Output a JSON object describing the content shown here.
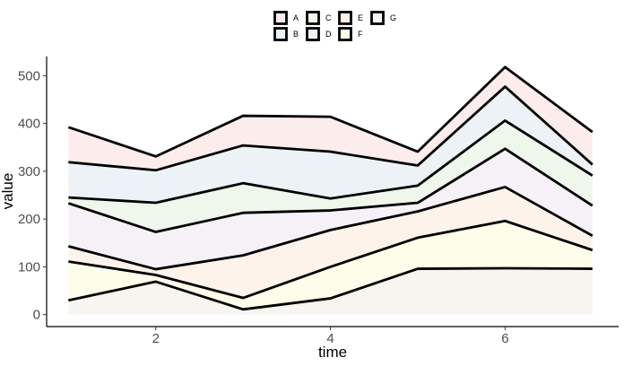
{
  "chart_data": {
    "type": "area",
    "stacked": true,
    "xlabel": "time",
    "ylabel": "value",
    "x": [
      1,
      2,
      3,
      4,
      5,
      6,
      7
    ],
    "xlim": [
      0.75,
      7.3
    ],
    "ylim": [
      -25,
      540
    ],
    "xticks": [
      2,
      4,
      6
    ],
    "yticks": [
      0,
      100,
      200,
      300,
      400,
      500
    ],
    "grid": false,
    "legend_position": "top",
    "series": [
      {
        "name": "G",
        "values": [
          30,
          69,
          11,
          34,
          96,
          97,
          96
        ],
        "color": "#f7f5ef"
      },
      {
        "name": "F",
        "values": [
          81,
          14,
          24,
          66,
          65,
          99,
          39
        ],
        "color": "#fdfdea"
      },
      {
        "name": "E",
        "values": [
          32,
          12,
          89,
          77,
          55,
          71,
          30
        ],
        "color": "#fdf3ea"
      },
      {
        "name": "D",
        "values": [
          90,
          78,
          89,
          41,
          18,
          80,
          63
        ],
        "color": "#f6f1f7"
      },
      {
        "name": "C",
        "values": [
          12,
          61,
          62,
          25,
          36,
          59,
          63
        ],
        "color": "#eff6ec"
      },
      {
        "name": "B",
        "values": [
          74,
          68,
          79,
          98,
          42,
          71,
          23
        ],
        "color": "#edf2f7"
      },
      {
        "name": "A",
        "values": [
          73,
          29,
          62,
          73,
          29,
          41,
          68
        ],
        "color": "#fcecec"
      }
    ],
    "legend_order": [
      "A",
      "B",
      "C",
      "D",
      "E",
      "F",
      "G"
    ]
  }
}
